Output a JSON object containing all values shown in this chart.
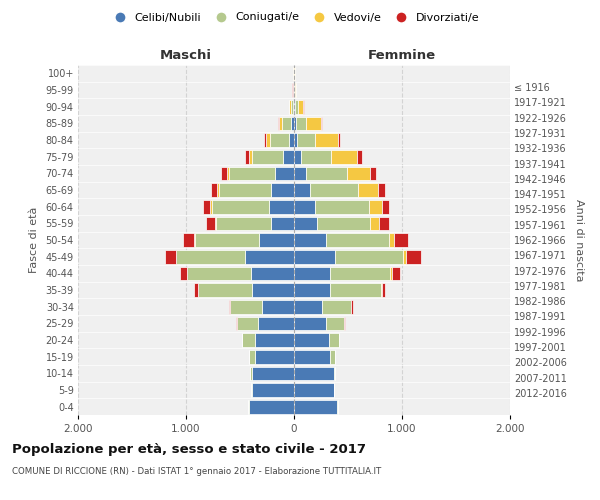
{
  "age_groups_bottom_to_top": [
    "0-4",
    "5-9",
    "10-14",
    "15-19",
    "20-24",
    "25-29",
    "30-34",
    "35-39",
    "40-44",
    "45-49",
    "50-54",
    "55-59",
    "60-64",
    "65-69",
    "70-74",
    "75-79",
    "80-84",
    "85-89",
    "90-94",
    "95-99",
    "100+"
  ],
  "birth_years_bottom_to_top": [
    "2012-2016",
    "2007-2011",
    "2002-2006",
    "1997-2001",
    "1992-1996",
    "1987-1991",
    "1982-1986",
    "1977-1981",
    "1972-1976",
    "1967-1971",
    "1962-1966",
    "1957-1961",
    "1952-1956",
    "1947-1951",
    "1942-1946",
    "1937-1941",
    "1932-1936",
    "1927-1931",
    "1922-1926",
    "1917-1921",
    "≤ 1916"
  ],
  "maschi": {
    "celibi": [
      420,
      390,
      390,
      360,
      360,
      330,
      300,
      390,
      400,
      450,
      320,
      210,
      230,
      210,
      180,
      100,
      50,
      25,
      10,
      4,
      2
    ],
    "coniugati": [
      5,
      5,
      20,
      60,
      120,
      200,
      290,
      500,
      590,
      640,
      600,
      510,
      530,
      480,
      420,
      290,
      170,
      85,
      22,
      6,
      2
    ],
    "vedovi": [
      0,
      0,
      0,
      0,
      0,
      0,
      0,
      1,
      2,
      3,
      5,
      10,
      15,
      20,
      25,
      30,
      42,
      28,
      10,
      3,
      1
    ],
    "divorziati": [
      0,
      0,
      0,
      1,
      2,
      5,
      10,
      32,
      65,
      105,
      105,
      85,
      65,
      58,
      52,
      38,
      16,
      6,
      2,
      1,
      0
    ]
  },
  "femmine": {
    "nubili": [
      400,
      370,
      370,
      330,
      320,
      295,
      260,
      330,
      330,
      380,
      295,
      215,
      195,
      145,
      110,
      65,
      32,
      18,
      9,
      3,
      2
    ],
    "coniugate": [
      5,
      3,
      10,
      50,
      95,
      170,
      265,
      475,
      560,
      630,
      580,
      490,
      495,
      450,
      380,
      280,
      165,
      95,
      28,
      6,
      2
    ],
    "vedove": [
      0,
      0,
      0,
      0,
      1,
      2,
      3,
      8,
      15,
      30,
      52,
      82,
      125,
      185,
      210,
      240,
      210,
      140,
      48,
      12,
      2
    ],
    "divorziate": [
      0,
      0,
      0,
      1,
      2,
      5,
      15,
      32,
      72,
      135,
      125,
      95,
      65,
      62,
      58,
      42,
      22,
      9,
      3,
      1,
      0
    ]
  },
  "colors": {
    "celibi_nubili": "#4a7ab5",
    "coniugati_e": "#b5c98e",
    "vedovi_e": "#f5c842",
    "divorziati_e": "#cc2222"
  },
  "xlim": 2000,
  "title": "Popolazione per età, sesso e stato civile - 2017",
  "subtitle": "COMUNE DI RICCIONE (RN) - Dati ISTAT 1° gennaio 2017 - Elaborazione TUTTITALIA.IT",
  "ylabel_left": "Fasce di età",
  "ylabel_right": "Anni di nascita",
  "xlabel_maschi": "Maschi",
  "xlabel_femmine": "Femmine",
  "bg_plot": "#f0f0f0",
  "bg_fig": "#ffffff",
  "grid_color": "#cccccc"
}
